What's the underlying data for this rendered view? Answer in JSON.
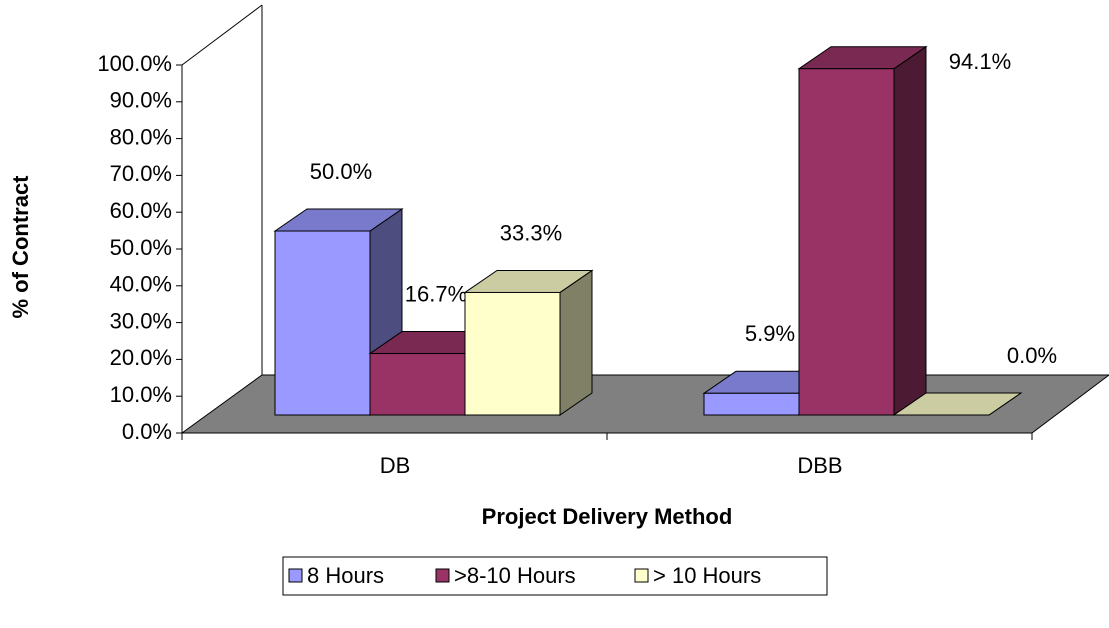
{
  "chart_data": {
    "type": "bar3d",
    "categories": [
      "DB",
      "DBB"
    ],
    "series": [
      {
        "name": "8 Hours",
        "color": "#9999ff",
        "values": [
          50.0,
          5.9
        ],
        "value_labels": [
          "50.0%",
          "5.9%"
        ]
      },
      {
        "name": ">8-10 Hours",
        "color": "#993366",
        "values": [
          16.7,
          94.1
        ],
        "value_labels": [
          "16.7%",
          "94.1%"
        ]
      },
      {
        "name": "> 10 Hours",
        "color": "#ffffcc",
        "values": [
          33.3,
          0.0
        ],
        "value_labels": [
          "33.3%",
          "0.0%"
        ]
      }
    ],
    "x_label": "Project Delivery Method",
    "y_label": "% of Contract",
    "ylim": [
      0,
      100
    ],
    "yticks": [
      {
        "value": 0,
        "label": "0.0%"
      },
      {
        "value": 10,
        "label": "10.0%"
      },
      {
        "value": 20,
        "label": "20.0%"
      },
      {
        "value": 30,
        "label": "30.0%"
      },
      {
        "value": 40,
        "label": "40.0%"
      },
      {
        "value": 50,
        "label": "50.0%"
      },
      {
        "value": 60,
        "label": "60.0%"
      },
      {
        "value": 70,
        "label": "70.0%"
      },
      {
        "value": 80,
        "label": "80.0%"
      },
      {
        "value": 90,
        "label": "90.0%"
      },
      {
        "value": 100,
        "label": "100.0%"
      }
    ],
    "legend": "bottom"
  }
}
